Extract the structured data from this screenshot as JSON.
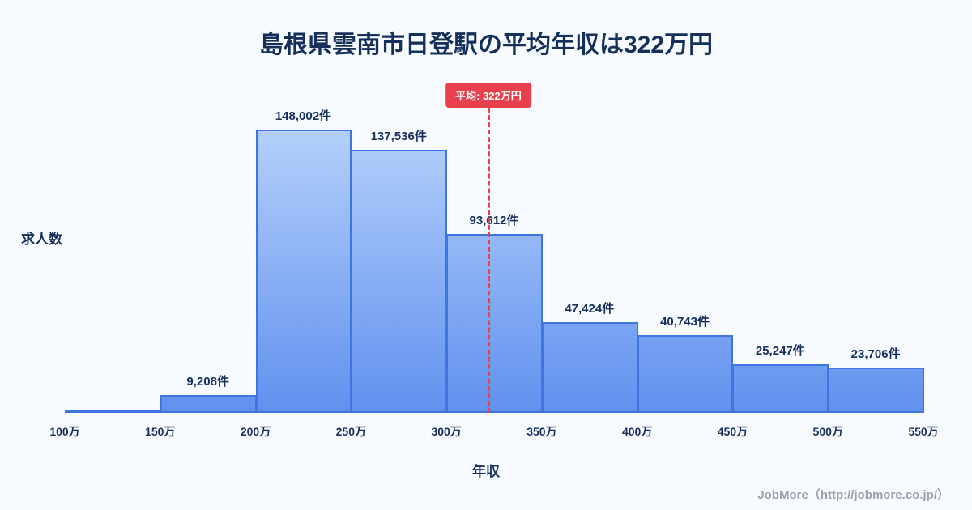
{
  "page": {
    "title": "島根県雲南市日登駅の平均年収は322万円",
    "footer": "JobMore（http://jobmore.co.jp/）"
  },
  "theme": {
    "background": "#f7faff",
    "ink": "#16305c",
    "red": "#e8404d",
    "bar_border": "#3f75df",
    "bar_top": "#b4d0fa",
    "bar_bottom": "#6191ef",
    "footer_gray": "#9aa1ad"
  },
  "chart_data": {
    "type": "bar",
    "title": "島根県雲南市日登駅の平均年収は322万円",
    "xlabel": "年収",
    "ylabel": "求人数",
    "grid": false,
    "legend": false,
    "x_unit": "万円",
    "x_range": [
      100,
      550
    ],
    "x_ticks": [
      "100万",
      "150万",
      "200万",
      "250万",
      "300万",
      "350万",
      "400万",
      "450万",
      "500万",
      "550万"
    ],
    "bins": [
      {
        "range": "100万-150万",
        "value": 0,
        "label": ""
      },
      {
        "range": "150万-200万",
        "value": 9208,
        "label": "9,208件"
      },
      {
        "range": "200万-250万",
        "value": 148002,
        "label": "148,002件"
      },
      {
        "range": "250万-300万",
        "value": 137536,
        "label": "137,536件"
      },
      {
        "range": "300万-350万",
        "value": 93612,
        "label": "93,612件"
      },
      {
        "range": "350万-400万",
        "value": 47424,
        "label": "47,424件"
      },
      {
        "range": "400万-450万",
        "value": 40743,
        "label": "40,743件"
      },
      {
        "range": "450万-500万",
        "value": 25247,
        "label": "25,247件"
      },
      {
        "range": "500万-550万",
        "value": 23706,
        "label": "23,706件"
      }
    ],
    "average": {
      "value": 322,
      "label": "平均: 322万円"
    }
  }
}
